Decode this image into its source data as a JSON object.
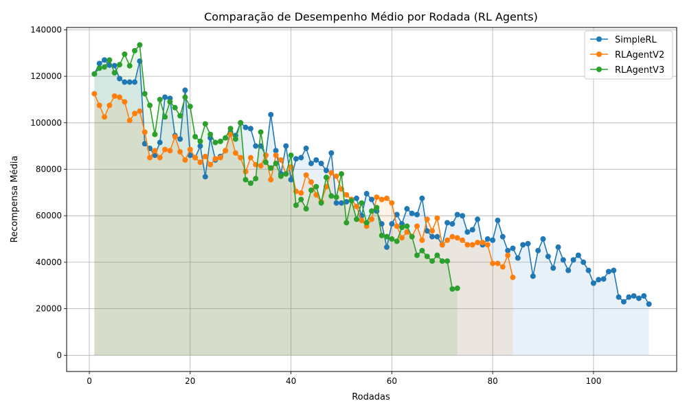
{
  "chart_data": {
    "type": "line",
    "title": "Comparação de Desempenho Médio por Rodada (RL Agents)",
    "xlabel": "Rodadas",
    "ylabel": "Recompensa Média",
    "xlim": [
      -4.5,
      116.5
    ],
    "ylim": [
      -7000,
      141000
    ],
    "xticks": [
      0,
      20,
      40,
      60,
      80,
      100
    ],
    "yticks": [
      0,
      20000,
      40000,
      60000,
      80000,
      100000,
      120000,
      140000
    ],
    "grid": true,
    "legend_position": "top-right",
    "series": [
      {
        "name": "SimpleRL",
        "color": "#1f77b4",
        "values": [
          121000,
          125500,
          127000,
          124800,
          124600,
          119000,
          117500,
          117500,
          117500,
          126500,
          91000,
          89000,
          86000,
          91500,
          111000,
          110500,
          94500,
          93000,
          114000,
          86000,
          85000,
          90000,
          76800,
          93500,
          84000,
          85500,
          88000,
          96000,
          94500,
          100000,
          98000,
          97500,
          90000,
          90000,
          86000,
          103500,
          88000,
          78000,
          90000,
          75500,
          84500,
          85000,
          89000,
          82500,
          84000,
          82500,
          79500,
          87000,
          65500,
          65500,
          66000,
          67000,
          67500,
          60000,
          69500,
          67000,
          62000,
          56500,
          46500,
          56500,
          60500,
          56500,
          63000,
          61000,
          60500,
          67500,
          53500,
          51000,
          51000,
          47500,
          57000,
          56500,
          60500,
          60000,
          53000,
          54000,
          58500,
          47500,
          50000,
          49500,
          58000,
          51000,
          45000,
          46000,
          41800,
          47500,
          48000,
          34000,
          45000,
          50000,
          42500,
          37500,
          46500,
          41000,
          36500,
          41000,
          43000,
          40000,
          36500,
          31000,
          32500,
          32800,
          36000,
          36500,
          25000,
          23000,
          25000,
          25500,
          24500,
          25500,
          22000
        ]
      },
      {
        "name": "RLAgentV2",
        "color": "#ff7f0e",
        "values": [
          112500,
          107500,
          102500,
          107500,
          111500,
          111000,
          109000,
          101000,
          104000,
          105000,
          96000,
          85000,
          88000,
          85000,
          88500,
          88000,
          94000,
          87500,
          84000,
          88500,
          85000,
          83000,
          85500,
          82000,
          84500,
          85000,
          88000,
          95000,
          87000,
          85000,
          79000,
          85000,
          82000,
          81500,
          86000,
          75500,
          86000,
          84000,
          78000,
          81000,
          70500,
          69800,
          77500,
          74500,
          69000,
          66000,
          72500,
          78500,
          77000,
          71500,
          69000,
          67000,
          64000,
          58000,
          55500,
          58500,
          68000,
          67000,
          67500,
          65500,
          55500,
          50500,
          53000,
          51000,
          55500,
          49500,
          58500,
          53500,
          59000,
          47500,
          49500,
          51000,
          50500,
          49500,
          47500,
          47500,
          48500,
          48500,
          47500,
          39500,
          39500,
          38000,
          43000,
          33500
        ]
      },
      {
        "name": "RLAgentV3",
        "color": "#2ca02c",
        "values": [
          121000,
          123500,
          124000,
          127000,
          121500,
          125000,
          129500,
          124500,
          131000,
          133500,
          112500,
          107500,
          95000,
          110000,
          102500,
          109000,
          106500,
          103000,
          111000,
          107000,
          94000,
          92000,
          99500,
          95000,
          91500,
          92000,
          93500,
          97500,
          93000,
          100000,
          75500,
          74000,
          76000,
          96000,
          83000,
          80500,
          82500,
          77000,
          78000,
          86000,
          64500,
          67000,
          63000,
          71000,
          72500,
          65500,
          76500,
          68500,
          68000,
          78000,
          57000,
          66500,
          58500,
          65500,
          57000,
          62000,
          63500,
          51500,
          51000,
          50000,
          49000,
          55000,
          55500,
          51000,
          43000,
          45000,
          42500,
          40500,
          43000,
          40500,
          40500,
          28500,
          28800
        ]
      }
    ]
  }
}
